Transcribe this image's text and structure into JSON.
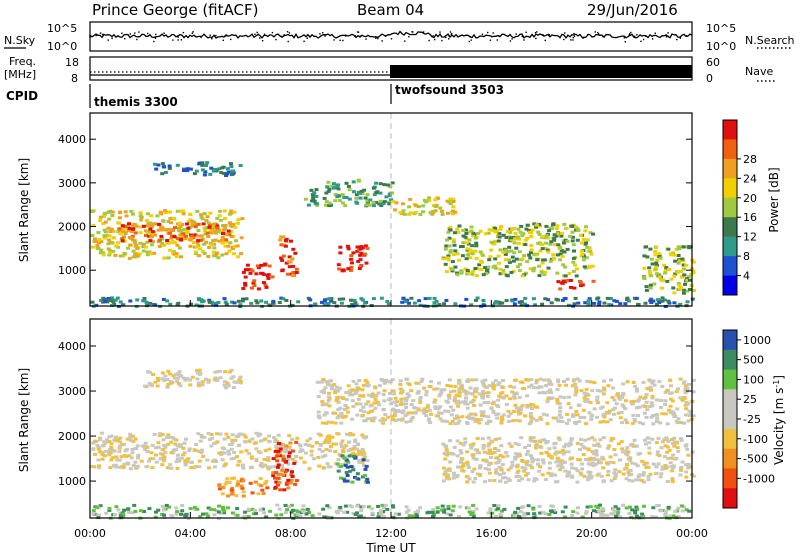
{
  "header": {
    "station": "Prince George (fitACF)",
    "beam": "Beam 04",
    "date": "29/Jun/2016"
  },
  "noise_panel": {
    "left_label": "N.Sky",
    "right_label": "N.Search",
    "left_ticks": [
      "10^5",
      "10^0"
    ],
    "right_ticks": [
      "10^5",
      "10^0"
    ]
  },
  "freq_panel": {
    "left_label_top": "Freq.",
    "left_label_bottom": "[MHz]",
    "right_label": "Nave",
    "left_ticks": [
      "18",
      "8"
    ],
    "right_ticks": [
      "60",
      "0"
    ]
  },
  "cpid_panel": {
    "label": "CPID",
    "segments": [
      {
        "name": "themis 3300",
        "start_hour": 0
      },
      {
        "name": "twofsound 3503",
        "start_hour": 12
      }
    ]
  },
  "time_axis": {
    "label": "Time UT",
    "ticks": [
      "00:00",
      "04:00",
      "08:00",
      "12:00",
      "16:00",
      "20:00",
      "00:00"
    ]
  },
  "chart_data": [
    {
      "type": "heatmap",
      "title": "",
      "quantity": "Power",
      "xlabel": "Time UT",
      "ylabel": "Slant Range [km]",
      "xlim": [
        0,
        24
      ],
      "ylim": [
        180,
        4600
      ],
      "y_ticks": [
        "1000",
        "2000",
        "3000",
        "4000"
      ],
      "colorbar": {
        "label": "Power [dB]",
        "ticks": [
          "4",
          "8",
          "12",
          "16",
          "20",
          "24",
          "28"
        ],
        "colors": [
          "#0000e6",
          "#1e50d2",
          "#2e9a8a",
          "#3c7a4e",
          "#a0c840",
          "#f0d000",
          "#f0a020",
          "#f06010",
          "#e01010"
        ]
      },
      "regions": [
        {
          "t0": 0,
          "t1": 6,
          "r0": 1300,
          "r1": 2400,
          "level": 5
        },
        {
          "t0": 1,
          "t1": 5.5,
          "r0": 1700,
          "r1": 2100,
          "level": 7
        },
        {
          "t0": 2.5,
          "t1": 6,
          "r0": 3200,
          "r1": 3500,
          "level": 2
        },
        {
          "t0": 6,
          "t1": 7.2,
          "r0": 600,
          "r1": 1200,
          "level": 8
        },
        {
          "t0": 7.5,
          "t1": 8.2,
          "r0": 900,
          "r1": 1800,
          "level": 7
        },
        {
          "t0": 9.8,
          "t1": 11,
          "r0": 1000,
          "r1": 1600,
          "level": 8
        },
        {
          "t0": 8.5,
          "t1": 12,
          "r0": 2500,
          "r1": 3100,
          "level": 3
        },
        {
          "t0": 12,
          "t1": 14.5,
          "r0": 2300,
          "r1": 2700,
          "level": 5
        },
        {
          "t0": 14,
          "t1": 20,
          "r0": 900,
          "r1": 2100,
          "level": 4
        },
        {
          "t0": 18.5,
          "t1": 20,
          "r0": 600,
          "r1": 800,
          "level": 8
        },
        {
          "t0": 22,
          "t1": 24,
          "r0": 500,
          "r1": 1600,
          "level": 4
        },
        {
          "t0": 0,
          "t1": 24,
          "r0": 200,
          "r1": 400,
          "level": 2
        }
      ]
    },
    {
      "type": "heatmap",
      "title": "",
      "quantity": "Velocity",
      "xlabel": "Time UT",
      "ylabel": "Slant Range [km]",
      "xlim": [
        0,
        24
      ],
      "ylim": [
        180,
        4600
      ],
      "y_ticks": [
        "1000",
        "2000",
        "3000",
        "4000"
      ],
      "colorbar": {
        "label": "Velocity [m s",
        "label_sup": "-1",
        "label_end": "]",
        "ticks": [
          "1000",
          "500",
          "100",
          "25",
          "-25",
          "-100",
          "-500",
          "-1000"
        ],
        "colors": [
          "#e01010",
          "#f05010",
          "#f09020",
          "#f0c040",
          "#c8c8c0",
          "#c8c8c0",
          "#60c040",
          "#3c8a60",
          "#2850b0"
        ]
      },
      "regions": [
        {
          "t0": 0,
          "t1": 11,
          "r0": 1300,
          "r1": 2100,
          "level": 4
        },
        {
          "t0": 2,
          "t1": 6,
          "r0": 3100,
          "r1": 3500,
          "level": 4
        },
        {
          "t0": 9,
          "t1": 24,
          "r0": 2300,
          "r1": 3300,
          "level": 4
        },
        {
          "t0": 14,
          "t1": 24,
          "r0": 1000,
          "r1": 2000,
          "level": 4
        },
        {
          "t0": 5,
          "t1": 7,
          "r0": 700,
          "r1": 1100,
          "level": 2
        },
        {
          "t0": 7.2,
          "t1": 8.2,
          "r0": 800,
          "r1": 1900,
          "level": 1
        },
        {
          "t0": 9.8,
          "t1": 11,
          "r0": 1000,
          "r1": 1600,
          "level": 7
        },
        {
          "t0": 0,
          "t1": 24,
          "r0": 200,
          "r1": 500,
          "level": 6
        }
      ]
    }
  ]
}
